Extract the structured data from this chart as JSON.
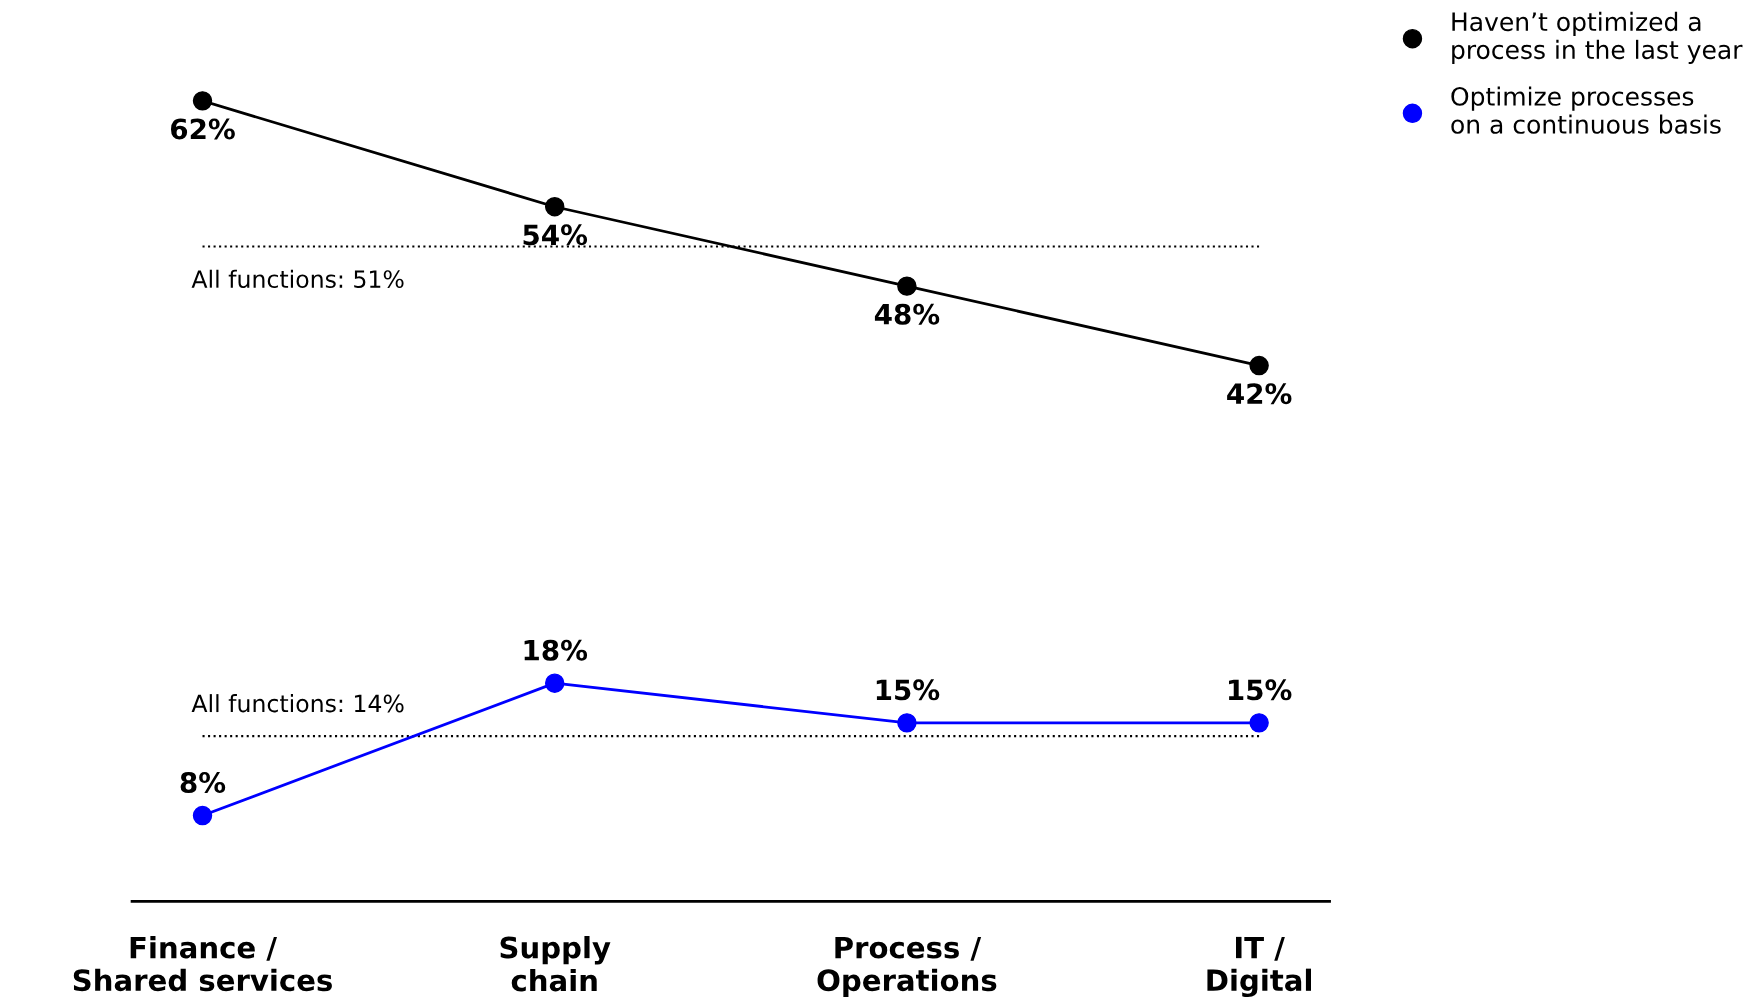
{
  "chart_data": {
    "type": "line",
    "categories": [
      "Finance /\nShared services",
      "Supply\nchain",
      "Process /\nOperations",
      "IT /\nDigital"
    ],
    "series": [
      {
        "name": "Haven’t optimized a\nprocess in the last year",
        "color": "#000000",
        "values": [
          62,
          54,
          48,
          42
        ],
        "value_labels": [
          "62%",
          "54%",
          "48%",
          "42%"
        ]
      },
      {
        "name": "Optimize processes\non a continuous basis",
        "color": "#0000ff",
        "values": [
          8,
          18,
          15,
          15
        ],
        "value_labels": [
          "8%",
          "18%",
          "15%",
          "15%"
        ]
      }
    ],
    "ref_lines": [
      {
        "axis": "y",
        "value": 51,
        "label": "All functions: 51%",
        "color": "#000000",
        "line_style": "dotted"
      },
      {
        "axis": "y",
        "value": 14,
        "label": "All functions: 14%",
        "color": "#000000",
        "line_style": "dotted"
      }
    ],
    "marker": "circle",
    "line_style": "solid",
    "grid": false,
    "legend": "top right",
    "tick_labels": "x"
  }
}
